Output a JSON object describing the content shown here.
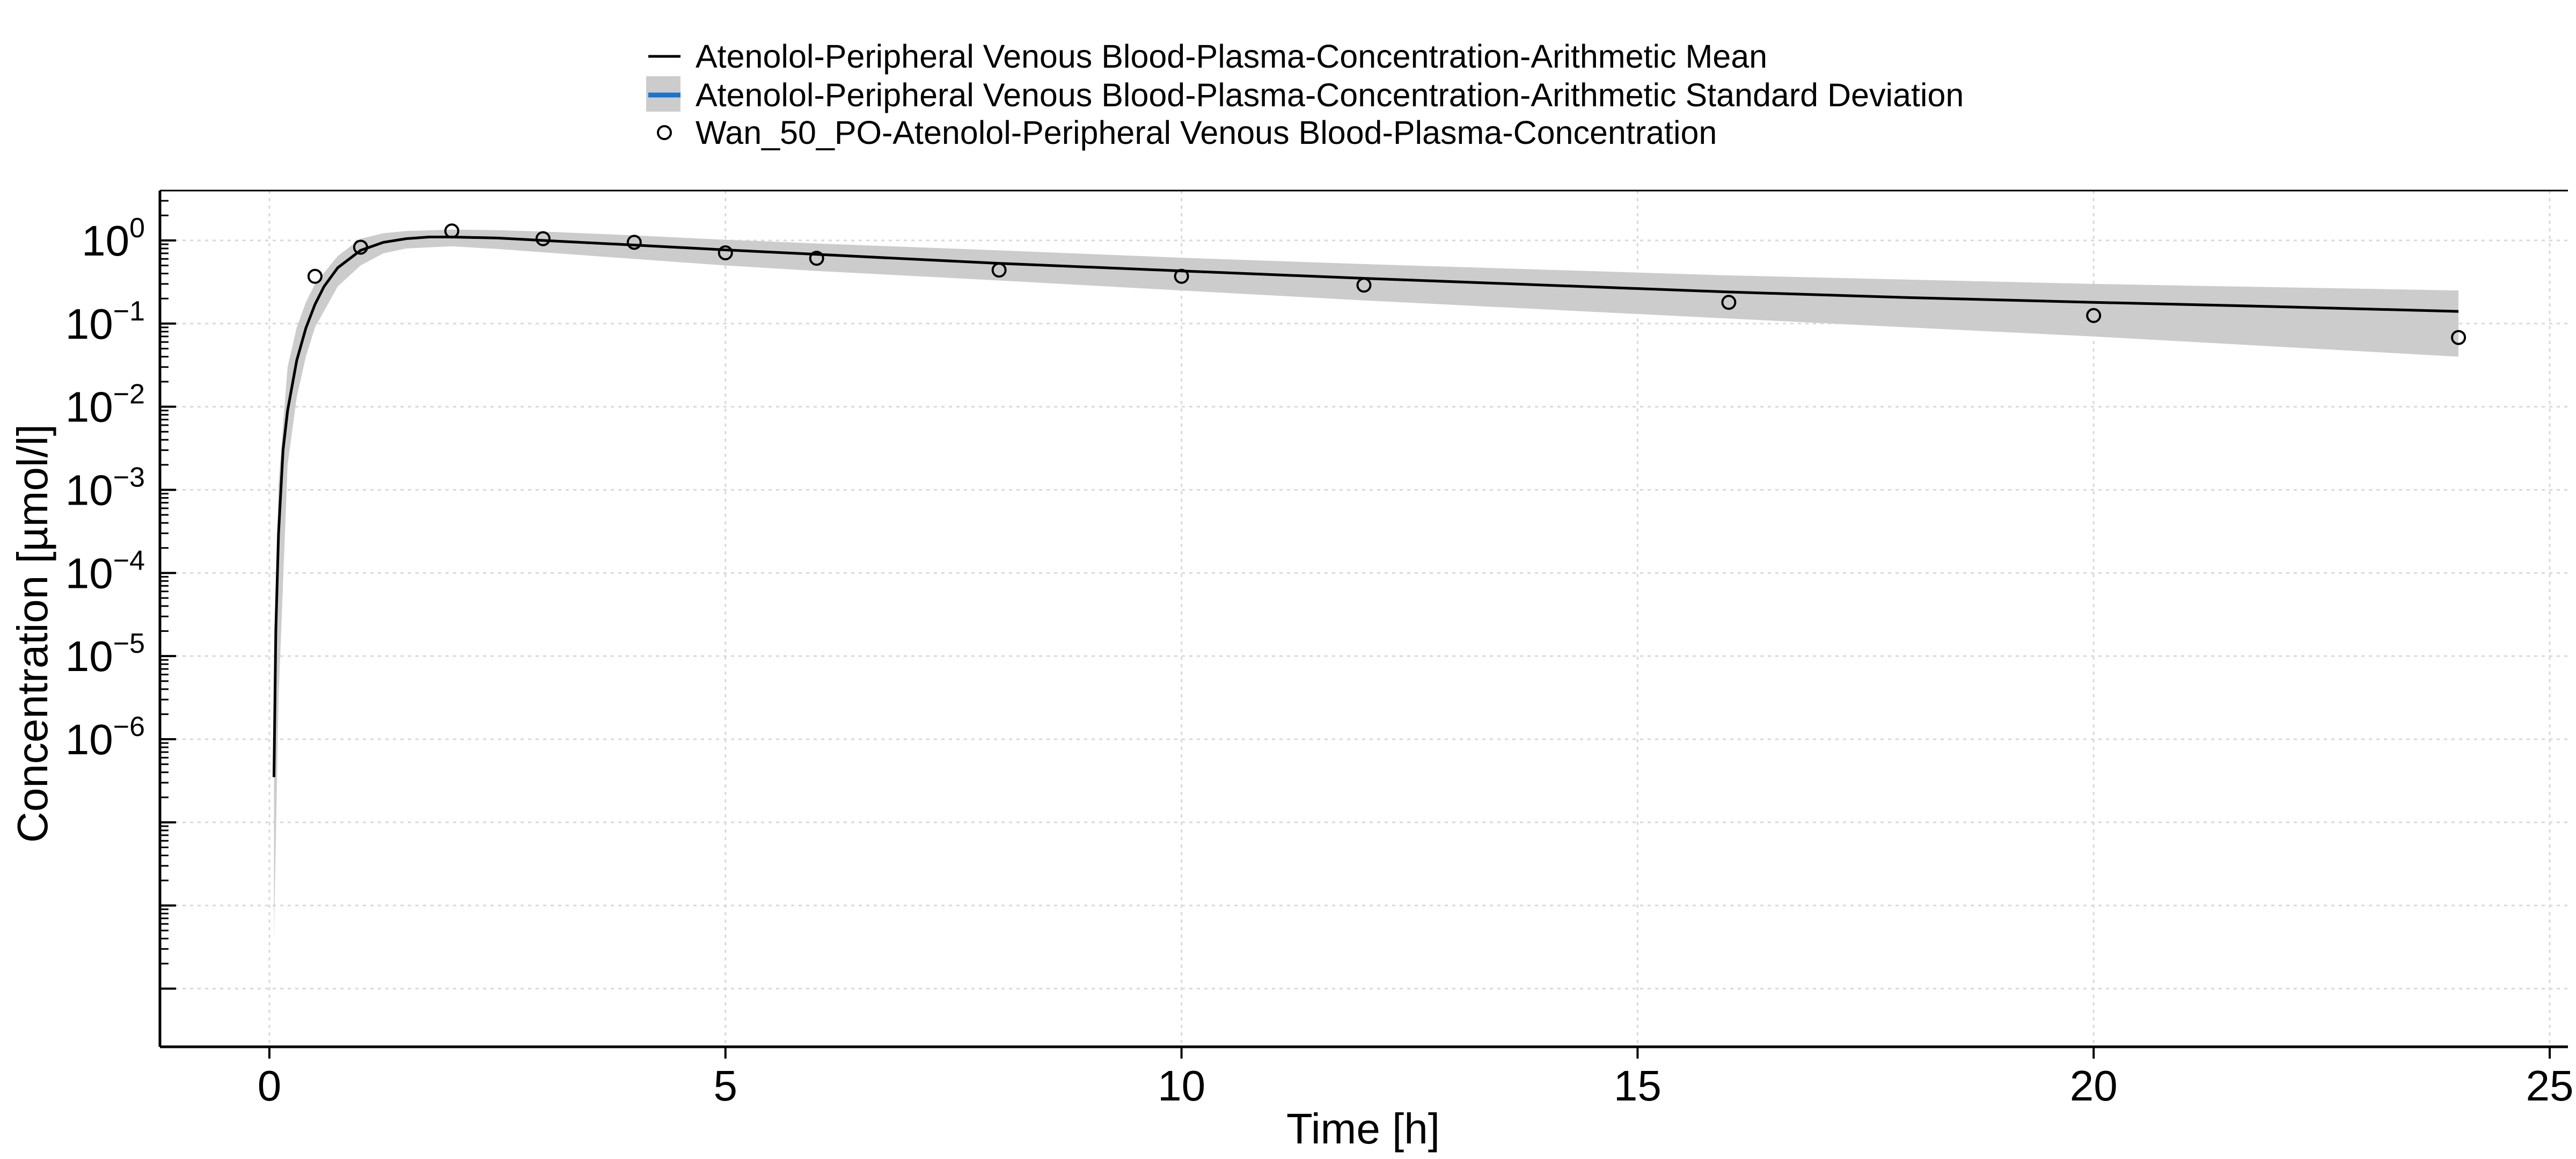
{
  "chart_data": {
    "type": "line",
    "title": "",
    "xlabel": "Time [h]",
    "ylabel": "Concentration [µmol/l]",
    "xlim": [
      -1.2,
      25.2
    ],
    "ylim_log10": [
      -9.7,
      0.6
    ],
    "y_scale": "log",
    "grid": true,
    "legend_position": "top-center",
    "x_ticks": [
      0,
      5,
      10,
      15,
      20,
      25
    ],
    "y_tick_labels": [
      {
        "base": "10",
        "exp": "0",
        "value": 1
      },
      {
        "base": "10",
        "exp": "−1",
        "value": 0.1
      },
      {
        "base": "10",
        "exp": "−2",
        "value": 0.01
      },
      {
        "base": "10",
        "exp": "−3",
        "value": 0.001
      },
      {
        "base": "10",
        "exp": "−4",
        "value": 0.0001
      },
      {
        "base": "10",
        "exp": "−5",
        "value": 1e-05
      },
      {
        "base": "10",
        "exp": "−6",
        "value": 1e-06
      }
    ],
    "series": [
      {
        "name": "Atenolol-Peripheral Venous Blood-Plasma-Concentration-Arithmetic Mean",
        "kind": "line",
        "color": "#000000",
        "x": [
          0.05,
          0.07,
          0.1,
          0.15,
          0.2,
          0.3,
          0.4,
          0.5,
          0.6,
          0.75,
          1.0,
          1.25,
          1.5,
          1.75,
          2.0,
          2.5,
          3,
          4,
          5,
          6,
          7,
          8,
          10,
          12,
          14,
          16,
          18,
          20,
          22,
          24
        ],
        "y": [
          3.5e-07,
          2e-05,
          0.0003,
          0.003,
          0.009,
          0.036,
          0.088,
          0.17,
          0.28,
          0.47,
          0.76,
          0.95,
          1.05,
          1.1,
          1.1,
          1.07,
          1.0,
          0.88,
          0.77,
          0.68,
          0.6,
          0.53,
          0.43,
          0.35,
          0.29,
          0.24,
          0.205,
          0.18,
          0.16,
          0.14
        ]
      },
      {
        "name": "Atenolol-Peripheral Venous Blood-Plasma-Concentration-Arithmetic Standard Deviation",
        "kind": "band",
        "color": "#cccccc",
        "legend_color": "#1874cd",
        "x": [
          0.05,
          0.1,
          0.2,
          0.3,
          0.4,
          0.5,
          0.75,
          1.0,
          1.25,
          1.5,
          2.0,
          2.5,
          3,
          4,
          5,
          6,
          8,
          10,
          12,
          16,
          20,
          24
        ],
        "lower": [
          4e-09,
          3e-06,
          0.002,
          0.013,
          0.04,
          0.09,
          0.28,
          0.5,
          0.7,
          0.8,
          0.85,
          0.79,
          0.72,
          0.6,
          0.5,
          0.43,
          0.33,
          0.25,
          0.19,
          0.115,
          0.07,
          0.04
        ],
        "upper": [
          3e-06,
          0.0012,
          0.03,
          0.09,
          0.18,
          0.3,
          0.65,
          1.05,
          1.22,
          1.3,
          1.35,
          1.33,
          1.28,
          1.15,
          1.02,
          0.92,
          0.76,
          0.62,
          0.52,
          0.38,
          0.3,
          0.25
        ]
      },
      {
        "name": "Wan_50_PO-Atenolol-Peripheral Venous Blood-Plasma-Concentration",
        "kind": "scatter",
        "color": "#000000",
        "x": [
          0.5,
          1,
          2,
          3,
          4,
          5,
          6,
          8,
          10,
          12,
          16,
          20,
          24
        ],
        "y": [
          0.37,
          0.83,
          1.3,
          1.05,
          0.95,
          0.71,
          0.61,
          0.44,
          0.37,
          0.29,
          0.18,
          0.125,
          0.068
        ]
      }
    ]
  }
}
